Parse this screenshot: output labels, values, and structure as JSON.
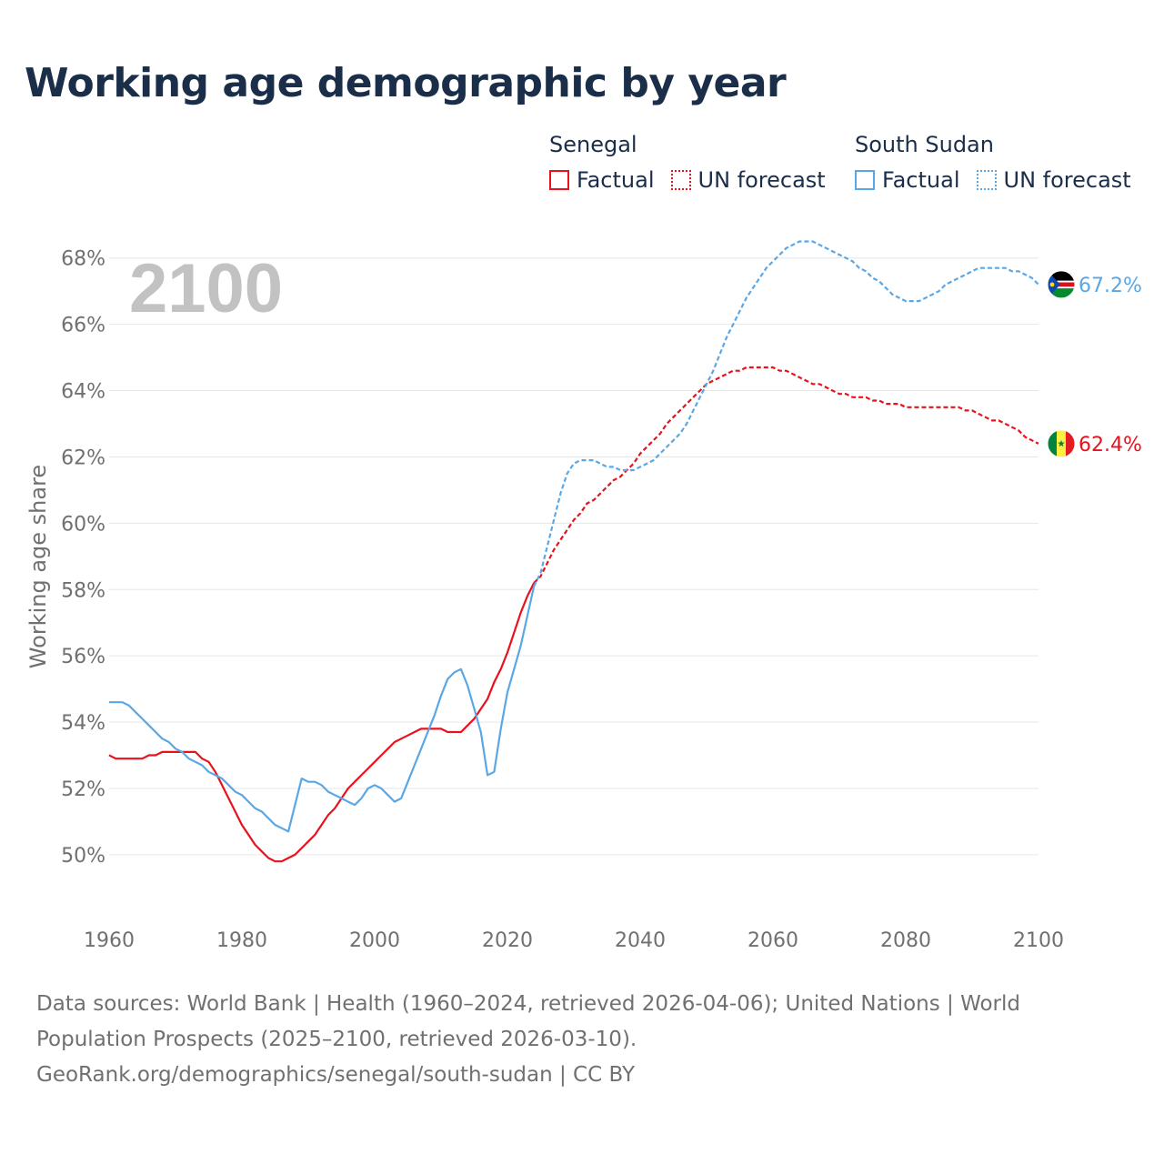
{
  "title": "Working age demographic by year",
  "legend": {
    "groups": [
      {
        "name": "Senegal",
        "factual_label": "Factual",
        "forecast_label": "UN forecast",
        "color": "#e8121e"
      },
      {
        "name": "South Sudan",
        "factual_label": "Factual",
        "forecast_label": "UN forecast",
        "color": "#5aa7e6"
      }
    ]
  },
  "year_display": "2100",
  "footer": {
    "line1": "Data sources: World Bank | Health (1960–2024, retrieved 2026-04-06); United Nations | World",
    "line2": "Population Prospects (2025–2100, retrieved 2026-03-10).",
    "line3": "GeoRank.org/demographics/senegal/south-sudan | CC BY"
  },
  "colors": {
    "senegal": "#e8121e",
    "south_sudan": "#5aa7e6",
    "title": "#1a2e4a",
    "axis_text": "#707070",
    "grid": "#e6e6e6",
    "year_watermark": "#c2c2c2"
  },
  "flags": {
    "senegal": {
      "icon": "senegal-flag-icon",
      "colors": [
        "#00853f",
        "#fdef42",
        "#e31b23"
      ]
    },
    "south_sudan": {
      "icon": "south-sudan-flag-icon",
      "colors": [
        "#000000",
        "#ffffff",
        "#da121a",
        "#078930",
        "#0f47af",
        "#fcdd09"
      ]
    }
  },
  "chart_data": {
    "type": "line",
    "ylabel": "Working age share",
    "xlabel": "",
    "xlim": [
      1960,
      2100
    ],
    "ylim": [
      48.9,
      69.2
    ],
    "x_ticks": [
      1960,
      1980,
      2000,
      2020,
      2040,
      2060,
      2080,
      2100
    ],
    "x_tick_labels": [
      "1960",
      "1980",
      "2000",
      "2020",
      "2040",
      "2060",
      "2080",
      "2100"
    ],
    "y_ticks": [
      50,
      52,
      54,
      56,
      58,
      60,
      62,
      64,
      66,
      68
    ],
    "y_tick_labels": [
      "50%",
      "52%",
      "54%",
      "56%",
      "58%",
      "60%",
      "62%",
      "64%",
      "66%",
      "68%"
    ],
    "grid": true,
    "end_labels": {
      "senegal": "62.4%",
      "south_sudan": "67.2%"
    },
    "series": [
      {
        "name": "Senegal",
        "segment": "Factual",
        "key": "senegal",
        "style": "solid",
        "points": [
          [
            1960,
            53.0
          ],
          [
            1961,
            52.9
          ],
          [
            1962,
            52.9
          ],
          [
            1963,
            52.9
          ],
          [
            1964,
            52.9
          ],
          [
            1965,
            52.9
          ],
          [
            1966,
            53.0
          ],
          [
            1967,
            53.0
          ],
          [
            1968,
            53.1
          ],
          [
            1969,
            53.1
          ],
          [
            1970,
            53.1
          ],
          [
            1971,
            53.1
          ],
          [
            1972,
            53.1
          ],
          [
            1973,
            53.1
          ],
          [
            1974,
            52.9
          ],
          [
            1975,
            52.8
          ],
          [
            1976,
            52.5
          ],
          [
            1977,
            52.1
          ],
          [
            1978,
            51.7
          ],
          [
            1979,
            51.3
          ],
          [
            1980,
            50.9
          ],
          [
            1981,
            50.6
          ],
          [
            1982,
            50.3
          ],
          [
            1983,
            50.1
          ],
          [
            1984,
            49.9
          ],
          [
            1985,
            49.8
          ],
          [
            1986,
            49.8
          ],
          [
            1987,
            49.9
          ],
          [
            1988,
            50.0
          ],
          [
            1989,
            50.2
          ],
          [
            1990,
            50.4
          ],
          [
            1991,
            50.6
          ],
          [
            1992,
            50.9
          ],
          [
            1993,
            51.2
          ],
          [
            1994,
            51.4
          ],
          [
            1995,
            51.7
          ],
          [
            1996,
            52.0
          ],
          [
            1997,
            52.2
          ],
          [
            1998,
            52.4
          ],
          [
            1999,
            52.6
          ],
          [
            2000,
            52.8
          ],
          [
            2001,
            53.0
          ],
          [
            2002,
            53.2
          ],
          [
            2003,
            53.4
          ],
          [
            2004,
            53.5
          ],
          [
            2005,
            53.6
          ],
          [
            2006,
            53.7
          ],
          [
            2007,
            53.8
          ],
          [
            2008,
            53.8
          ],
          [
            2009,
            53.8
          ],
          [
            2010,
            53.8
          ],
          [
            2011,
            53.7
          ],
          [
            2012,
            53.7
          ],
          [
            2013,
            53.7
          ],
          [
            2014,
            53.9
          ],
          [
            2015,
            54.1
          ],
          [
            2016,
            54.4
          ],
          [
            2017,
            54.7
          ],
          [
            2018,
            55.2
          ],
          [
            2019,
            55.6
          ],
          [
            2020,
            56.1
          ],
          [
            2021,
            56.7
          ],
          [
            2022,
            57.3
          ],
          [
            2023,
            57.8
          ],
          [
            2024,
            58.2
          ]
        ]
      },
      {
        "name": "Senegal",
        "segment": "UN forecast",
        "key": "senegal",
        "style": "dashed",
        "points": [
          [
            2024,
            58.2
          ],
          [
            2025,
            58.4
          ],
          [
            2026,
            58.8
          ],
          [
            2027,
            59.2
          ],
          [
            2028,
            59.5
          ],
          [
            2029,
            59.8
          ],
          [
            2030,
            60.1
          ],
          [
            2031,
            60.3
          ],
          [
            2032,
            60.6
          ],
          [
            2033,
            60.7
          ],
          [
            2034,
            60.9
          ],
          [
            2035,
            61.1
          ],
          [
            2036,
            61.3
          ],
          [
            2037,
            61.4
          ],
          [
            2038,
            61.6
          ],
          [
            2039,
            61.8
          ],
          [
            2040,
            62.1
          ],
          [
            2041,
            62.3
          ],
          [
            2042,
            62.5
          ],
          [
            2043,
            62.7
          ],
          [
            2044,
            63.0
          ],
          [
            2045,
            63.2
          ],
          [
            2046,
            63.4
          ],
          [
            2047,
            63.6
          ],
          [
            2048,
            63.8
          ],
          [
            2049,
            64.0
          ],
          [
            2050,
            64.2
          ],
          [
            2051,
            64.3
          ],
          [
            2052,
            64.4
          ],
          [
            2053,
            64.5
          ],
          [
            2054,
            64.6
          ],
          [
            2055,
            64.6
          ],
          [
            2056,
            64.7
          ],
          [
            2057,
            64.7
          ],
          [
            2058,
            64.7
          ],
          [
            2059,
            64.7
          ],
          [
            2060,
            64.7
          ],
          [
            2061,
            64.6
          ],
          [
            2062,
            64.6
          ],
          [
            2063,
            64.5
          ],
          [
            2064,
            64.4
          ],
          [
            2065,
            64.3
          ],
          [
            2066,
            64.2
          ],
          [
            2067,
            64.2
          ],
          [
            2068,
            64.1
          ],
          [
            2069,
            64.0
          ],
          [
            2070,
            63.9
          ],
          [
            2071,
            63.9
          ],
          [
            2072,
            63.8
          ],
          [
            2073,
            63.8
          ],
          [
            2074,
            63.8
          ],
          [
            2075,
            63.7
          ],
          [
            2076,
            63.7
          ],
          [
            2077,
            63.6
          ],
          [
            2078,
            63.6
          ],
          [
            2079,
            63.6
          ],
          [
            2080,
            63.5
          ],
          [
            2081,
            63.5
          ],
          [
            2082,
            63.5
          ],
          [
            2083,
            63.5
          ],
          [
            2084,
            63.5
          ],
          [
            2085,
            63.5
          ],
          [
            2086,
            63.5
          ],
          [
            2087,
            63.5
          ],
          [
            2088,
            63.5
          ],
          [
            2089,
            63.4
          ],
          [
            2090,
            63.4
          ],
          [
            2091,
            63.3
          ],
          [
            2092,
            63.2
          ],
          [
            2093,
            63.1
          ],
          [
            2094,
            63.1
          ],
          [
            2095,
            63.0
          ],
          [
            2096,
            62.9
          ],
          [
            2097,
            62.8
          ],
          [
            2098,
            62.6
          ],
          [
            2099,
            62.5
          ],
          [
            2100,
            62.4
          ]
        ]
      },
      {
        "name": "South Sudan",
        "segment": "Factual",
        "key": "south_sudan",
        "style": "solid",
        "points": [
          [
            1960,
            54.6
          ],
          [
            1961,
            54.6
          ],
          [
            1962,
            54.6
          ],
          [
            1963,
            54.5
          ],
          [
            1964,
            54.3
          ],
          [
            1965,
            54.1
          ],
          [
            1966,
            53.9
          ],
          [
            1967,
            53.7
          ],
          [
            1968,
            53.5
          ],
          [
            1969,
            53.4
          ],
          [
            1970,
            53.2
          ],
          [
            1971,
            53.1
          ],
          [
            1972,
            52.9
          ],
          [
            1973,
            52.8
          ],
          [
            1974,
            52.7
          ],
          [
            1975,
            52.5
          ],
          [
            1976,
            52.4
          ],
          [
            1977,
            52.3
          ],
          [
            1978,
            52.1
          ],
          [
            1979,
            51.9
          ],
          [
            1980,
            51.8
          ],
          [
            1981,
            51.6
          ],
          [
            1982,
            51.4
          ],
          [
            1983,
            51.3
          ],
          [
            1984,
            51.1
          ],
          [
            1985,
            50.9
          ],
          [
            1986,
            50.8
          ],
          [
            1987,
            50.7
          ],
          [
            1988,
            51.5
          ],
          [
            1989,
            52.3
          ],
          [
            1990,
            52.2
          ],
          [
            1991,
            52.2
          ],
          [
            1992,
            52.1
          ],
          [
            1993,
            51.9
          ],
          [
            1994,
            51.8
          ],
          [
            1995,
            51.7
          ],
          [
            1996,
            51.6
          ],
          [
            1997,
            51.5
          ],
          [
            1998,
            51.7
          ],
          [
            1999,
            52.0
          ],
          [
            2000,
            52.1
          ],
          [
            2001,
            52.0
          ],
          [
            2002,
            51.8
          ],
          [
            2003,
            51.6
          ],
          [
            2004,
            51.7
          ],
          [
            2005,
            52.2
          ],
          [
            2006,
            52.7
          ],
          [
            2007,
            53.2
          ],
          [
            2008,
            53.7
          ],
          [
            2009,
            54.2
          ],
          [
            2010,
            54.8
          ],
          [
            2011,
            55.3
          ],
          [
            2012,
            55.5
          ],
          [
            2013,
            55.6
          ],
          [
            2014,
            55.1
          ],
          [
            2015,
            54.4
          ],
          [
            2016,
            53.7
          ],
          [
            2017,
            52.4
          ],
          [
            2018,
            52.5
          ],
          [
            2019,
            53.8
          ],
          [
            2020,
            54.9
          ],
          [
            2021,
            55.6
          ],
          [
            2022,
            56.3
          ],
          [
            2023,
            57.2
          ],
          [
            2024,
            58.1
          ]
        ]
      },
      {
        "name": "South Sudan",
        "segment": "UN forecast",
        "key": "south_sudan",
        "style": "dashed",
        "points": [
          [
            2024,
            58.1
          ],
          [
            2025,
            58.5
          ],
          [
            2026,
            59.3
          ],
          [
            2027,
            60.1
          ],
          [
            2028,
            60.9
          ],
          [
            2029,
            61.5
          ],
          [
            2030,
            61.8
          ],
          [
            2031,
            61.9
          ],
          [
            2032,
            61.9
          ],
          [
            2033,
            61.9
          ],
          [
            2034,
            61.8
          ],
          [
            2035,
            61.7
          ],
          [
            2036,
            61.7
          ],
          [
            2037,
            61.6
          ],
          [
            2038,
            61.6
          ],
          [
            2039,
            61.6
          ],
          [
            2040,
            61.7
          ],
          [
            2041,
            61.8
          ],
          [
            2042,
            61.9
          ],
          [
            2043,
            62.1
          ],
          [
            2044,
            62.3
          ],
          [
            2045,
            62.5
          ],
          [
            2046,
            62.7
          ],
          [
            2047,
            63.0
          ],
          [
            2048,
            63.4
          ],
          [
            2049,
            63.8
          ],
          [
            2050,
            64.2
          ],
          [
            2051,
            64.6
          ],
          [
            2052,
            65.1
          ],
          [
            2053,
            65.6
          ],
          [
            2054,
            66.0
          ],
          [
            2055,
            66.4
          ],
          [
            2056,
            66.8
          ],
          [
            2057,
            67.1
          ],
          [
            2058,
            67.4
          ],
          [
            2059,
            67.7
          ],
          [
            2060,
            67.9
          ],
          [
            2061,
            68.1
          ],
          [
            2062,
            68.3
          ],
          [
            2063,
            68.4
          ],
          [
            2064,
            68.5
          ],
          [
            2065,
            68.5
          ],
          [
            2066,
            68.5
          ],
          [
            2067,
            68.4
          ],
          [
            2068,
            68.3
          ],
          [
            2069,
            68.2
          ],
          [
            2070,
            68.1
          ],
          [
            2071,
            68.0
          ],
          [
            2072,
            67.9
          ],
          [
            2073,
            67.7
          ],
          [
            2074,
            67.6
          ],
          [
            2075,
            67.4
          ],
          [
            2076,
            67.3
          ],
          [
            2077,
            67.1
          ],
          [
            2078,
            66.9
          ],
          [
            2079,
            66.8
          ],
          [
            2080,
            66.7
          ],
          [
            2081,
            66.7
          ],
          [
            2082,
            66.7
          ],
          [
            2083,
            66.8
          ],
          [
            2084,
            66.9
          ],
          [
            2085,
            67.0
          ],
          [
            2086,
            67.2
          ],
          [
            2087,
            67.3
          ],
          [
            2088,
            67.4
          ],
          [
            2089,
            67.5
          ],
          [
            2090,
            67.6
          ],
          [
            2091,
            67.7
          ],
          [
            2092,
            67.7
          ],
          [
            2093,
            67.7
          ],
          [
            2094,
            67.7
          ],
          [
            2095,
            67.7
          ],
          [
            2096,
            67.6
          ],
          [
            2097,
            67.6
          ],
          [
            2098,
            67.5
          ],
          [
            2099,
            67.4
          ],
          [
            2100,
            67.2
          ]
        ]
      }
    ]
  }
}
